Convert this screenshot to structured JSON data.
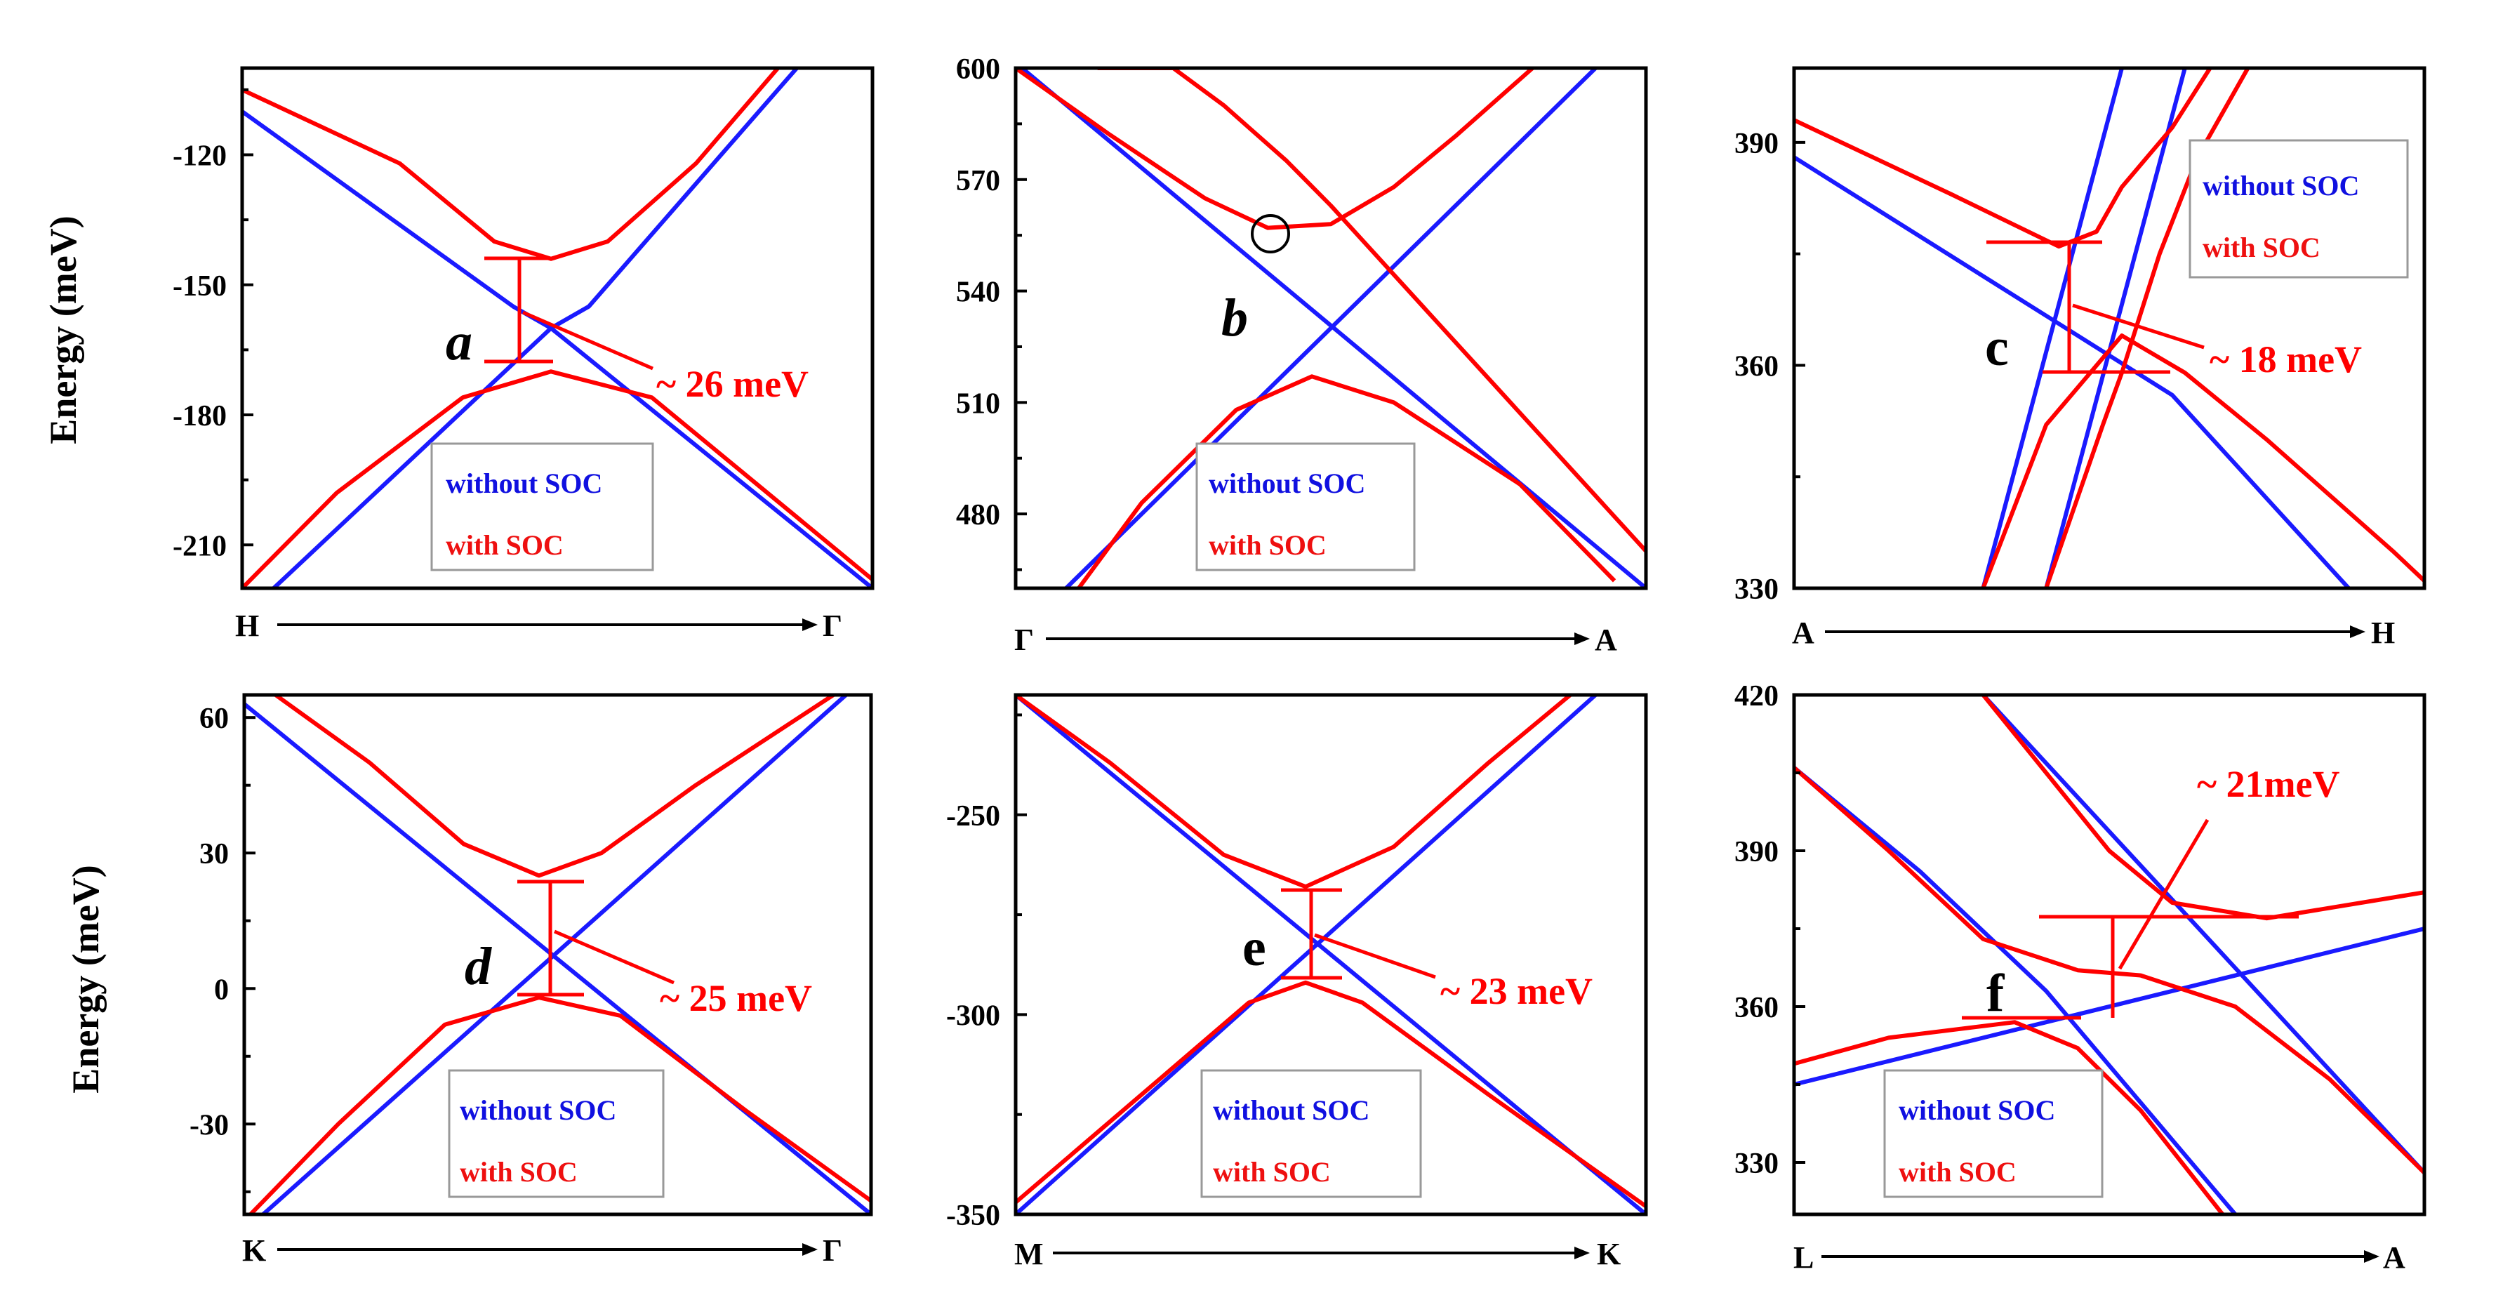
{
  "figure": {
    "y_axis_label": "Energy (meV)",
    "colors": {
      "without_soc": "#1a1aff",
      "with_soc": "#ff0000",
      "axis": "#000000"
    }
  },
  "chart_data": [
    {
      "id": "a",
      "type": "line",
      "letter": "a",
      "letter_italic": true,
      "k_start": "H",
      "k_end": "Γ",
      "ylim": [
        -220,
        -100
      ],
      "yticks": [
        -120,
        -150,
        -180,
        -210
      ],
      "gap_label": "~ 26 meV",
      "legend": {
        "without": "without SOC",
        "with": "with SOC",
        "position": "bottom-center"
      },
      "series": [
        {
          "name": "without SOC",
          "color": "blue",
          "x": [
            0,
            0.43,
            0.49,
            1
          ],
          "y": [
            -110,
            -155,
            -160,
            -220
          ]
        },
        {
          "name": "without SOC",
          "color": "blue",
          "x": [
            0.05,
            0.49,
            0.55,
            0.88
          ],
          "y": [
            -220,
            -160,
            -155,
            -100
          ]
        },
        {
          "name": "with SOC",
          "color": "red",
          "x": [
            0,
            0.25,
            0.4,
            0.49,
            0.58,
            0.72,
            0.85
          ],
          "y": [
            -105,
            -122,
            -140,
            -144,
            -140,
            -122,
            -100
          ]
        },
        {
          "name": "with SOC",
          "color": "red",
          "x": [
            0,
            0.15,
            0.35,
            0.49,
            0.65,
            0.85,
            1
          ],
          "y": [
            -220,
            -198,
            -176,
            -170,
            -176,
            -200,
            -218
          ]
        }
      ]
    },
    {
      "id": "b",
      "type": "line",
      "letter": "b",
      "letter_italic": true,
      "k_start": "Γ",
      "k_end": "A",
      "ylim": [
        460,
        600
      ],
      "yticks": [
        600,
        570,
        540,
        510,
        480
      ],
      "gap_label": "",
      "legend": {
        "without": "without SOC",
        "with": "with SOC",
        "position": "bottom-center"
      },
      "series": [
        {
          "name": "without SOC",
          "color": "blue",
          "x": [
            0.01,
            1
          ],
          "y": [
            600,
            460
          ]
        },
        {
          "name": "without SOC",
          "color": "blue",
          "x": [
            0.08,
            0.92
          ],
          "y": [
            460,
            600
          ]
        },
        {
          "name": "with SOC",
          "color": "red",
          "x": [
            0,
            0.15,
            0.3,
            0.4,
            0.5,
            0.6,
            0.7,
            0.82
          ],
          "y": [
            600,
            582,
            565,
            557,
            558,
            568,
            582,
            600
          ]
        },
        {
          "name": "with SOC",
          "color": "red",
          "x": [
            0.13,
            0.25,
            0.33,
            0.43,
            0.5,
            1
          ],
          "y": [
            600,
            600,
            590,
            575,
            563,
            470
          ]
        },
        {
          "name": "with SOC",
          "color": "red",
          "x": [
            0.1,
            0.2,
            0.35,
            0.47,
            0.6,
            0.8,
            0.95
          ],
          "y": [
            460,
            483,
            508,
            517,
            510,
            488,
            462
          ]
        }
      ]
    },
    {
      "id": "c",
      "type": "line",
      "letter": "c",
      "letter_italic": false,
      "k_start": "A",
      "k_end": "H",
      "ylim": [
        330,
        400
      ],
      "yticks": [
        390,
        360,
        330
      ],
      "gap_label": "~ 18 meV",
      "legend": {
        "without": "without SOC",
        "with": "with SOC",
        "position": "top-right"
      },
      "series": [
        {
          "name": "without SOC",
          "color": "blue",
          "x": [
            0,
            0.3,
            0.6,
            0.88
          ],
          "y": [
            388,
            372,
            356,
            330
          ]
        },
        {
          "name": "without SOC",
          "color": "blue",
          "x": [
            0.3,
            0.52
          ],
          "y": [
            330,
            400
          ]
        },
        {
          "name": "without SOC",
          "color": "blue",
          "x": [
            0.4,
            0.62
          ],
          "y": [
            330,
            400
          ]
        },
        {
          "name": "with SOC",
          "color": "red",
          "x": [
            0,
            0.25,
            0.42,
            0.48,
            0.52,
            0.6,
            0.66
          ],
          "y": [
            393,
            383,
            376,
            378,
            384,
            392,
            400
          ]
        },
        {
          "name": "with SOC",
          "color": "red",
          "x": [
            0.3,
            0.4,
            0.52,
            0.62,
            0.75,
            0.95,
            1
          ],
          "y": [
            330,
            352,
            364,
            359,
            350,
            335,
            331
          ]
        },
        {
          "name": "with SOC",
          "color": "red",
          "x": [
            0.4,
            0.49,
            0.52,
            0.55,
            0.58,
            0.64,
            0.72
          ],
          "y": [
            330,
            352,
            359,
            367,
            375,
            388,
            400
          ]
        }
      ]
    },
    {
      "id": "d",
      "type": "line",
      "letter": "d",
      "letter_italic": true,
      "k_start": "K",
      "k_end": "Γ",
      "ylim": [
        -50,
        65
      ],
      "yticks": [
        60,
        30,
        0,
        -30
      ],
      "gap_label": "~ 25 meV",
      "legend": {
        "without": "without SOC",
        "with": "with SOC",
        "position": "bottom-center"
      },
      "series": [
        {
          "name": "without SOC",
          "color": "blue",
          "x": [
            0,
            1
          ],
          "y": [
            63,
            -50
          ]
        },
        {
          "name": "without SOC",
          "color": "blue",
          "x": [
            0.03,
            0.96
          ],
          "y": [
            -50,
            65
          ]
        },
        {
          "name": "with SOC",
          "color": "red",
          "x": [
            0.05,
            0.2,
            0.35,
            0.47,
            0.57,
            0.72,
            0.94
          ],
          "y": [
            65,
            50,
            32,
            25,
            30,
            45,
            65
          ]
        },
        {
          "name": "with SOC",
          "color": "red",
          "x": [
            0.01,
            0.15,
            0.32,
            0.47,
            0.6,
            0.8,
            1
          ],
          "y": [
            -50,
            -30,
            -8,
            -2,
            -6,
            -27,
            -47
          ]
        }
      ]
    },
    {
      "id": "e",
      "type": "line",
      "letter": "e",
      "letter_italic": false,
      "k_start": "M",
      "k_end": "K",
      "ylim": [
        -350,
        -220
      ],
      "yticks": [
        -250,
        -300,
        -350
      ],
      "gap_label": "~ 23 meV",
      "legend": {
        "without": "without SOC",
        "with": "with SOC",
        "position": "bottom-center"
      },
      "series": [
        {
          "name": "without SOC",
          "color": "blue",
          "x": [
            0,
            1
          ],
          "y": [
            -220,
            -350
          ]
        },
        {
          "name": "without SOC",
          "color": "blue",
          "x": [
            0,
            0.92
          ],
          "y": [
            -350,
            -220
          ]
        },
        {
          "name": "with SOC",
          "color": "red",
          "x": [
            0,
            0.15,
            0.33,
            0.46,
            0.6,
            0.75,
            0.88
          ],
          "y": [
            -220,
            -237,
            -260,
            -268,
            -258,
            -237,
            -220
          ]
        },
        {
          "name": "with SOC",
          "color": "red",
          "x": [
            0,
            0.2,
            0.37,
            0.46,
            0.55,
            0.75,
            1
          ],
          "y": [
            -347,
            -320,
            -297,
            -292,
            -297,
            -320,
            -348
          ]
        }
      ]
    },
    {
      "id": "f",
      "type": "line",
      "letter": "f",
      "letter_italic": false,
      "k_start": "L",
      "k_end": "A",
      "ylim": [
        320,
        420
      ],
      "yticks": [
        420,
        390,
        360,
        330
      ],
      "gap_label": "~ 21meV",
      "legend": {
        "without": "without SOC",
        "with": "with SOC",
        "position": "bottom-center"
      },
      "series": [
        {
          "name": "without SOC",
          "color": "blue",
          "x": [
            0,
            0.2,
            0.4,
            0.7
          ],
          "y": [
            406,
            386,
            363,
            320
          ]
        },
        {
          "name": "without SOC",
          "color": "blue",
          "x": [
            0,
            1
          ],
          "y": [
            345,
            375
          ]
        },
        {
          "name": "without SOC",
          "color": "blue",
          "x": [
            0.3,
            1
          ],
          "y": [
            420,
            328
          ]
        },
        {
          "name": "with SOC",
          "color": "red",
          "x": [
            0.3,
            0.4,
            0.5,
            0.6,
            0.75,
            1
          ],
          "y": [
            420,
            405,
            390,
            380,
            377,
            382
          ]
        },
        {
          "name": "with SOC",
          "color": "red",
          "x": [
            0,
            0.15,
            0.3,
            0.45,
            0.55,
            0.7,
            0.85,
            1
          ],
          "y": [
            406,
            390,
            373,
            367,
            366,
            360,
            346,
            328
          ]
        },
        {
          "name": "with SOC",
          "color": "red",
          "x": [
            0,
            0.15,
            0.35,
            0.45,
            0.55,
            0.68
          ],
          "y": [
            349,
            354,
            357,
            352,
            340,
            320
          ]
        }
      ]
    }
  ]
}
